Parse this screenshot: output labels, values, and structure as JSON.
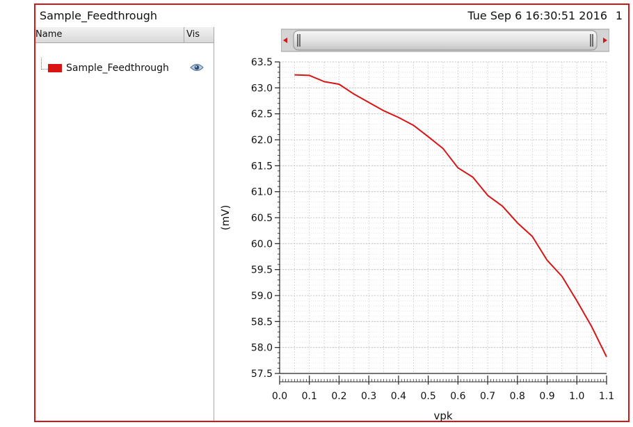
{
  "window": {
    "title": "Sample_Feedthrough",
    "timestamp": "Tue Sep 6 16:30:51 2016",
    "page": "1"
  },
  "legend": {
    "columns": {
      "name": "Name",
      "vis": "Vis"
    },
    "items": [
      {
        "label": "Sample_Feedthrough",
        "color": "#d81414",
        "visible_icon": "eye-icon"
      }
    ]
  },
  "chart_data": {
    "type": "line",
    "xlabel": "vpk",
    "ylabel": "(mV)",
    "xlim": [
      0.0,
      1.1
    ],
    "ylim": [
      57.5,
      63.5
    ],
    "xticks": [
      "0.0",
      "0.1",
      "0.2",
      "0.3",
      "0.4",
      "0.5",
      "0.6",
      "0.7",
      "0.8",
      "0.9",
      "1.0",
      "1.1"
    ],
    "yticks": [
      "57.5",
      "58.0",
      "58.5",
      "59.0",
      "59.5",
      "60.0",
      "60.5",
      "61.0",
      "61.5",
      "62.0",
      "62.5",
      "63.0",
      "63.5"
    ],
    "grid": true,
    "series": [
      {
        "name": "Sample_Feedthrough",
        "color": "#d81414",
        "x": [
          0.05,
          0.1,
          0.15,
          0.2,
          0.25,
          0.3,
          0.35,
          0.4,
          0.45,
          0.5,
          0.55,
          0.6,
          0.65,
          0.7,
          0.75,
          0.8,
          0.85,
          0.9,
          0.95,
          1.0,
          1.05,
          1.1
        ],
        "y": [
          63.25,
          63.24,
          63.12,
          63.07,
          62.88,
          62.72,
          62.56,
          62.43,
          62.28,
          62.06,
          61.83,
          61.46,
          61.28,
          60.93,
          60.72,
          60.4,
          60.14,
          59.68,
          59.37,
          58.9,
          58.4,
          57.82
        ]
      }
    ]
  }
}
